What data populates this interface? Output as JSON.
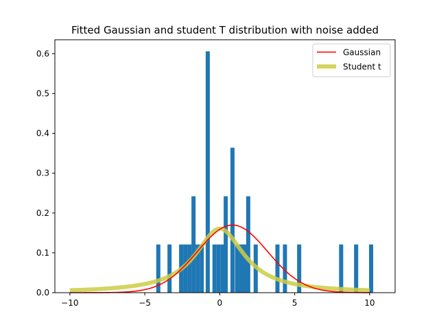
{
  "chart_data": {
    "type": "histogram",
    "title": "Fitted Gaussian and student T distribution with noise added",
    "xlabel": "",
    "ylabel": "",
    "xlim": [
      -11.0,
      11.7
    ],
    "ylim": [
      0,
      0.635
    ],
    "x_ticks": [
      -10,
      -5,
      0,
      5,
      10
    ],
    "y_ticks": [
      0.0,
      0.1,
      0.2,
      0.3,
      0.4,
      0.5,
      0.6
    ],
    "x_tick_labels": [
      "−10",
      "−5",
      "0",
      "5",
      "10"
    ],
    "y_tick_labels": [
      "0.0",
      "0.1",
      "0.2",
      "0.3",
      "0.4",
      "0.5",
      "0.6"
    ],
    "grid": false,
    "legend_position": "top-right",
    "histogram": {
      "color": "#1f77b4",
      "bin_width": 0.275,
      "bars": [
        {
          "x": -4.1,
          "height": 0.121
        },
        {
          "x": -3.35,
          "height": 0.121
        },
        {
          "x": -2.575,
          "height": 0.121
        },
        {
          "x": -2.3,
          "height": 0.121
        },
        {
          "x": -2.025,
          "height": 0.121
        },
        {
          "x": -1.75,
          "height": 0.242
        },
        {
          "x": -1.475,
          "height": 0.121
        },
        {
          "x": -1.2,
          "height": 0.121
        },
        {
          "x": -0.8,
          "height": 0.606
        },
        {
          "x": -0.35,
          "height": 0.121
        },
        {
          "x": -0.075,
          "height": 0.121
        },
        {
          "x": 0.2,
          "height": 0.121
        },
        {
          "x": 0.4,
          "height": 0.242
        },
        {
          "x": 0.85,
          "height": 0.364
        },
        {
          "x": 1.15,
          "height": 0.121
        },
        {
          "x": 1.425,
          "height": 0.121
        },
        {
          "x": 1.7,
          "height": 0.121
        },
        {
          "x": 1.9,
          "height": 0.242
        },
        {
          "x": 2.4,
          "height": 0.121
        },
        {
          "x": 3.85,
          "height": 0.121
        },
        {
          "x": 4.35,
          "height": 0.121
        },
        {
          "x": 5.3,
          "height": 0.121
        },
        {
          "x": 8.1,
          "height": 0.121
        },
        {
          "x": 9.1,
          "height": 0.121
        },
        {
          "x": 10.1,
          "height": 0.121
        }
      ]
    },
    "series": [
      {
        "name": "Gaussian",
        "type": "line",
        "color": "#ff0000",
        "mean": 0.85,
        "std": 2.35,
        "x_range": [
          -10,
          10
        ]
      },
      {
        "name": "Student t",
        "type": "line",
        "color": "#cccc44",
        "location": 0.0,
        "scale": 1.98,
        "df": 1,
        "x_range": [
          -10,
          10
        ]
      }
    ]
  }
}
